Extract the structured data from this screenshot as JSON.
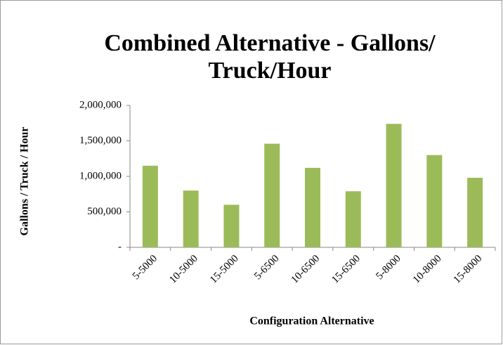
{
  "chart_data": {
    "type": "bar",
    "title": [
      "Combined Alternative - Gallons/",
      "Truck/Hour"
    ],
    "x_label": "Configuration Alternative",
    "y_label": "Gallons / Truck / Hour",
    "categories": [
      "5-5000",
      "10-5000",
      "15-5000",
      "5-6500",
      "10-6500",
      "15-6500",
      "5-8000",
      "10-8000",
      "15-8000"
    ],
    "values": [
      1150000,
      800000,
      600000,
      1460000,
      1120000,
      790000,
      1740000,
      1300000,
      980000
    ],
    "color": "#9bbb59",
    "ylim": [
      0,
      2000000
    ],
    "yticks": [
      {
        "value": 0,
        "label": "-"
      },
      {
        "value": 500000,
        "label": "500,000"
      },
      {
        "value": 1000000,
        "label": "1,000,000"
      },
      {
        "value": 1500000,
        "label": "1,500,000"
      },
      {
        "value": 2000000,
        "label": "2,000,000"
      }
    ],
    "grid": false
  }
}
